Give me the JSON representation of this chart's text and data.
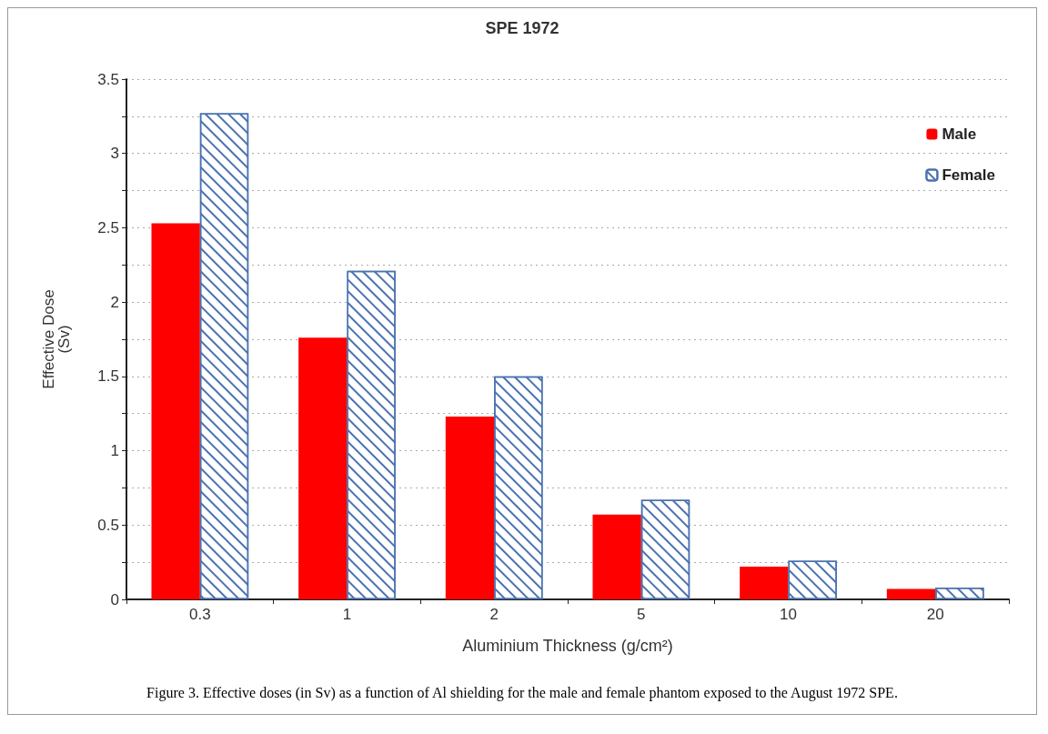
{
  "chart_data": {
    "type": "bar",
    "title": "SPE 1972",
    "xlabel": "Aluminium Thickness (g/cm²)",
    "ylabel": "Effective Dose\n(Sv)",
    "categories": [
      "0.3",
      "1",
      "2",
      "5",
      "10",
      "20"
    ],
    "series": [
      {
        "name": "Male",
        "color": "#ff0000",
        "values": [
          2.53,
          1.76,
          1.23,
          0.57,
          0.22,
          0.07
        ]
      },
      {
        "name": "Female",
        "color": "#4a72b0",
        "values": [
          3.27,
          2.21,
          1.5,
          0.67,
          0.26,
          0.08
        ]
      }
    ],
    "ylim": [
      0,
      3.5
    ],
    "yticks": [
      0,
      {
        "value": 0.25,
        "label": null
      },
      0.5,
      {
        "value": 0.75,
        "label": null
      },
      1,
      {
        "value": 1.25,
        "label": null
      },
      1.5,
      {
        "value": 1.75,
        "label": null
      },
      2,
      {
        "value": 2.25,
        "label": null
      },
      2.5,
      {
        "value": 2.75,
        "label": null
      },
      3,
      {
        "value": 3.25,
        "label": null
      },
      3.5
    ],
    "grid": "y",
    "legend": "top right",
    "annotations": [
      "Figure 3. Effective doses (in Sv) as a function of Al shielding for the male and female phantom exposed to the August 1972 SPE."
    ]
  }
}
